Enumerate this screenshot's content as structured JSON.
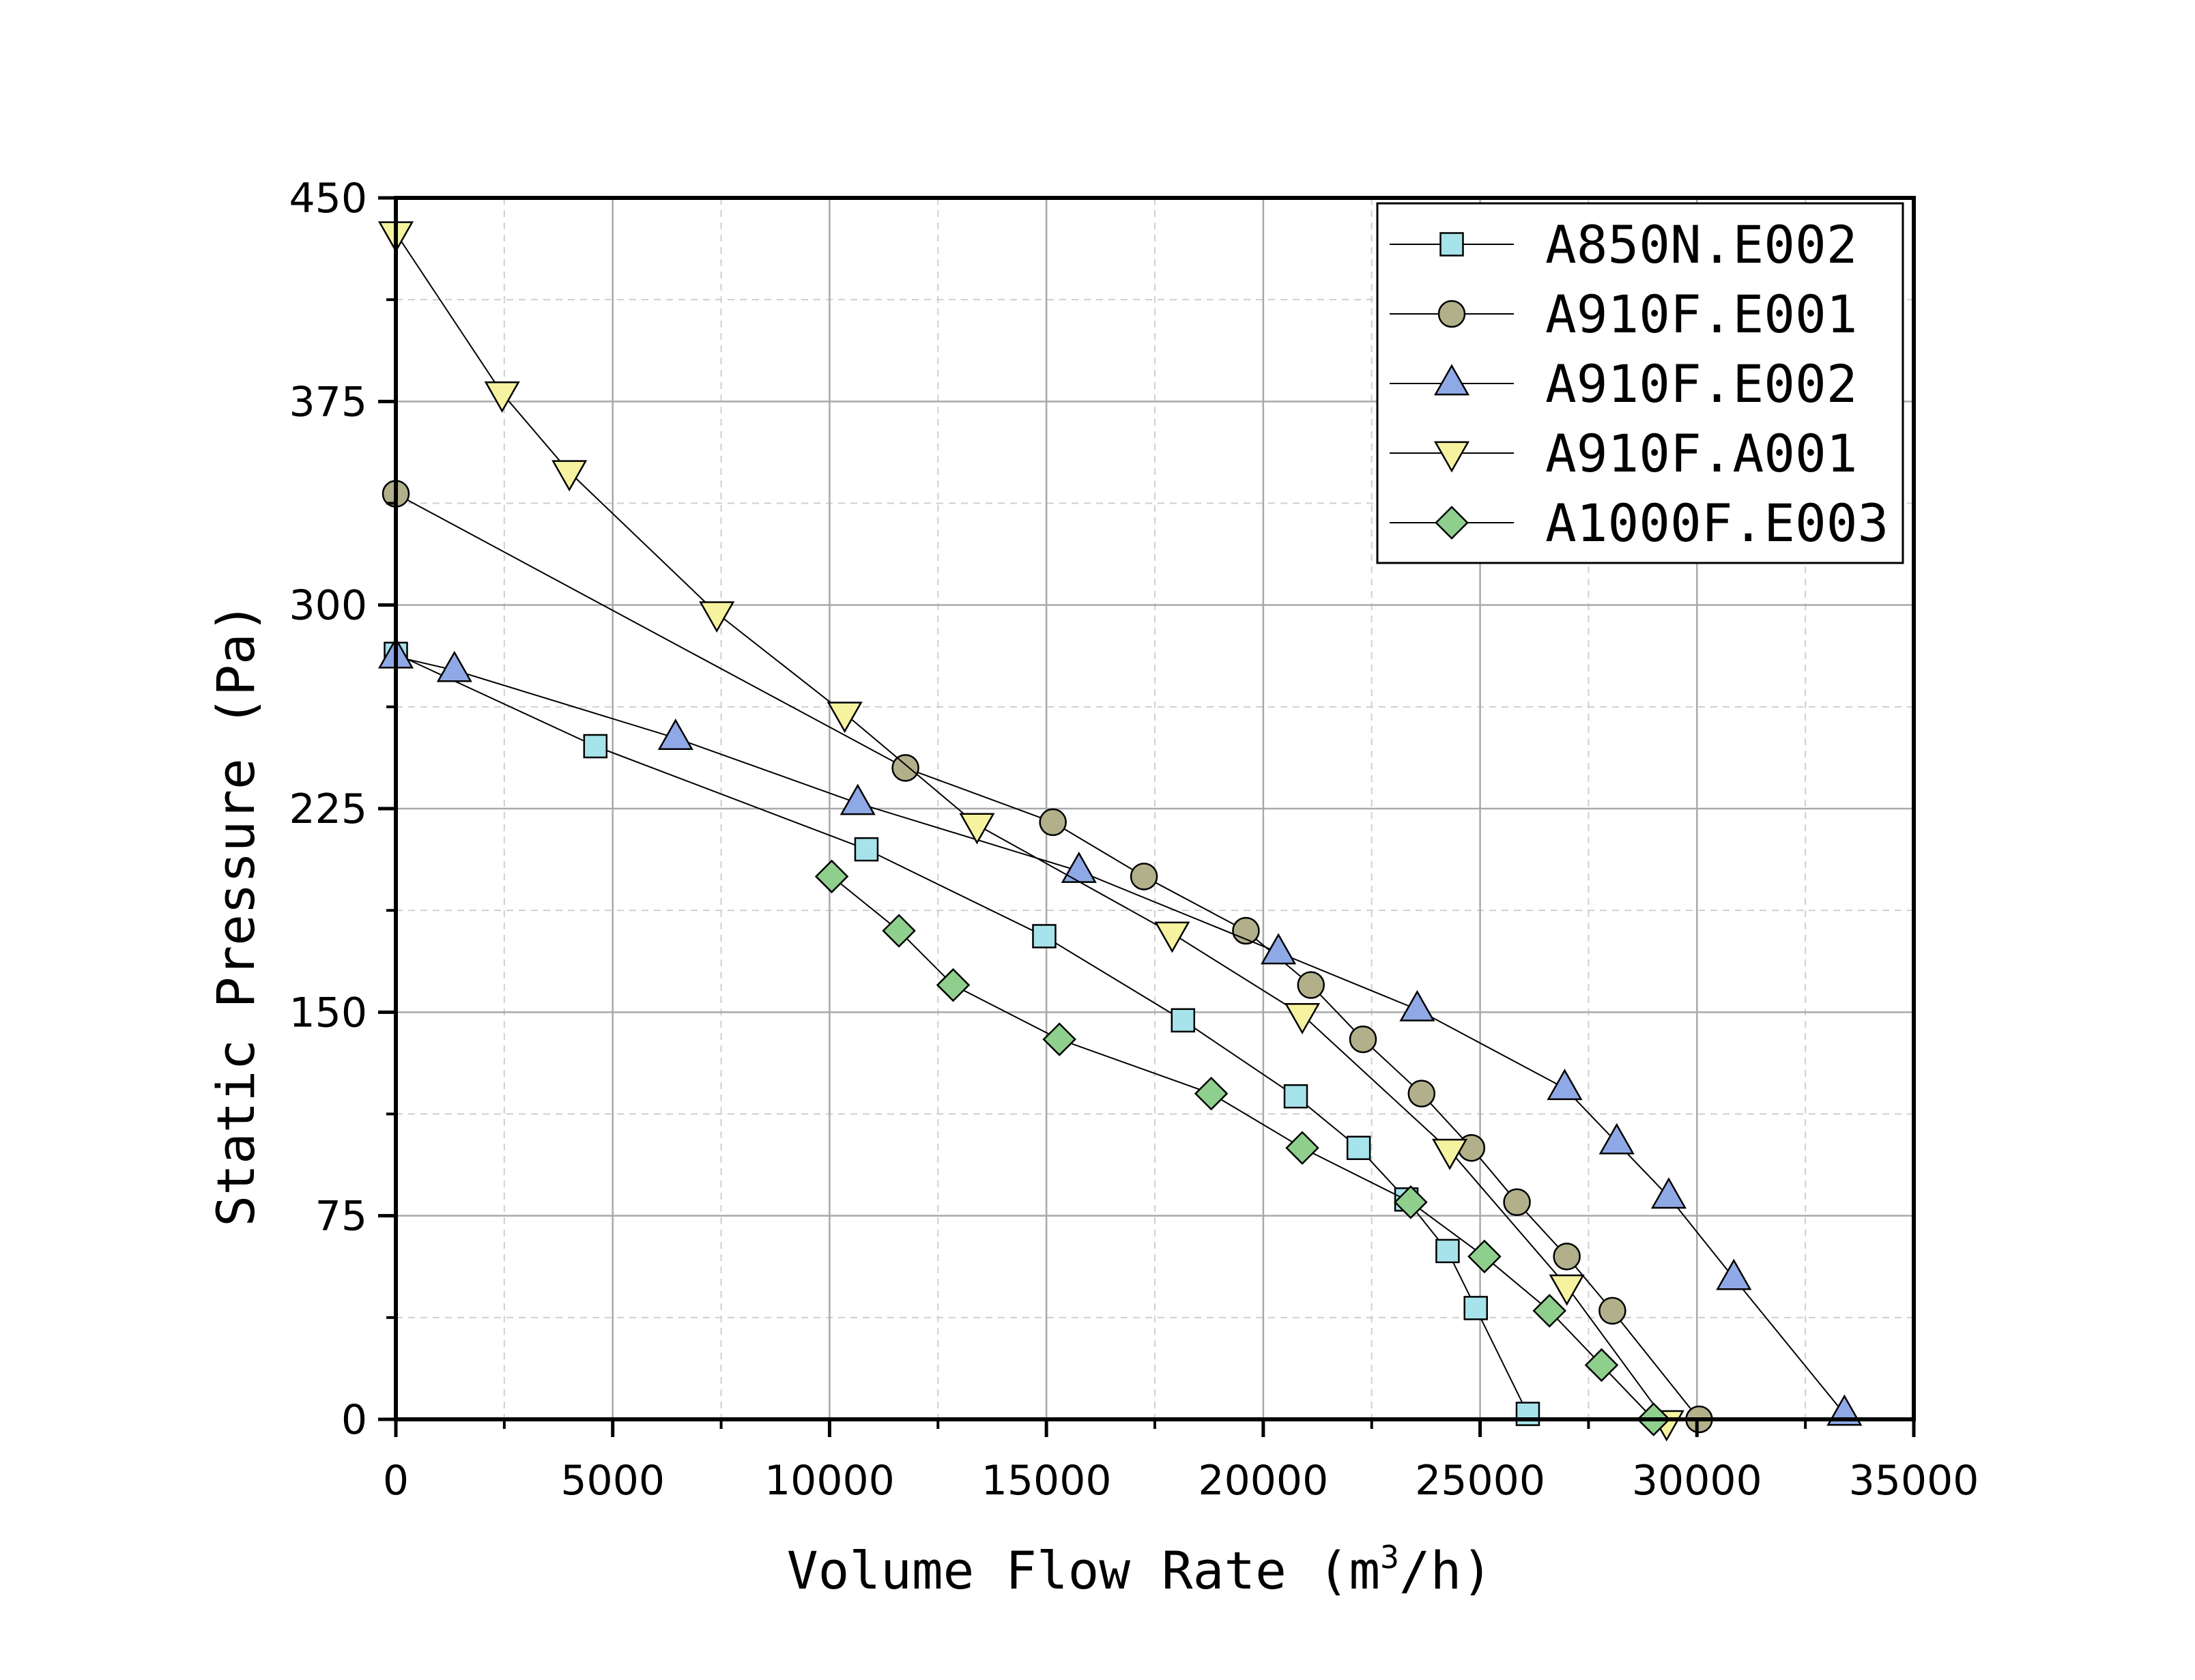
{
  "chart_data": {
    "type": "scatter",
    "title": "",
    "xlabel": "Volume Flow Rate",
    "xlabel_prefix": "Volume Flow Rate (m",
    "xlabel_sup": "3",
    "xlabel_suffix": "/h)",
    "ylabel": "Static Pressure (Pa)",
    "xlim": [
      0,
      35000
    ],
    "ylim": [
      0,
      450
    ],
    "xticks": [
      0,
      5000,
      10000,
      15000,
      20000,
      25000,
      30000,
      35000
    ],
    "yticks": [
      0,
      75,
      150,
      225,
      300,
      375,
      450
    ],
    "xtick_labels": [
      "0",
      "5000",
      "10000",
      "15000",
      "20000",
      "25000",
      "30000",
      "35000"
    ],
    "ytick_labels": [
      "0",
      "75",
      "150",
      "225",
      "300",
      "375",
      "450"
    ],
    "grid": true,
    "legend_position": "top-right",
    "series": [
      {
        "name": "A850N.E002",
        "marker": "square",
        "color": "#a6e3ea",
        "x": [
          0,
          4600,
          10850,
          14950,
          18150,
          20750,
          22200,
          23300,
          24250,
          24900,
          26100
        ],
        "y": [
          282,
          248,
          210,
          178,
          147,
          119,
          100,
          81,
          62,
          41,
          2
        ]
      },
      {
        "name": "A910F.E001",
        "marker": "circle",
        "color": "#b1b08a",
        "x": [
          0,
          11750,
          15150,
          17250,
          19600,
          21100,
          22300,
          23650,
          24800,
          25850,
          27000,
          28050,
          30050
        ],
        "y": [
          341,
          240,
          220,
          200,
          180,
          160,
          140,
          120,
          100,
          80,
          60,
          40,
          0
        ]
      },
      {
        "name": "A910F.E002",
        "marker": "triangle-up",
        "color": "#8fa9e6",
        "x": [
          0,
          1350,
          6450,
          10650,
          15750,
          20350,
          23550,
          26950,
          28150,
          29350,
          30850,
          33400
        ],
        "y": [
          281,
          276,
          251,
          227,
          202,
          172,
          151,
          122,
          102,
          82,
          52,
          2
        ]
      },
      {
        "name": "A910F.A001",
        "marker": "triangle-down",
        "color": "#f6f3a0",
        "x": [
          0,
          2450,
          4000,
          7400,
          10350,
          13400,
          17900,
          20900,
          24300,
          27000,
          29300
        ],
        "y": [
          437,
          378,
          349,
          297,
          260,
          219,
          179,
          149,
          99,
          49,
          -1
        ]
      },
      {
        "name": "A1000F.E003",
        "marker": "diamond",
        "color": "#8fcf8d",
        "x": [
          10050,
          11600,
          12850,
          15300,
          18800,
          20900,
          23400,
          25100,
          26600,
          27800,
          29000
        ],
        "y": [
          200,
          180,
          160,
          140,
          120,
          100,
          80,
          60,
          40,
          20,
          0
        ]
      }
    ]
  }
}
